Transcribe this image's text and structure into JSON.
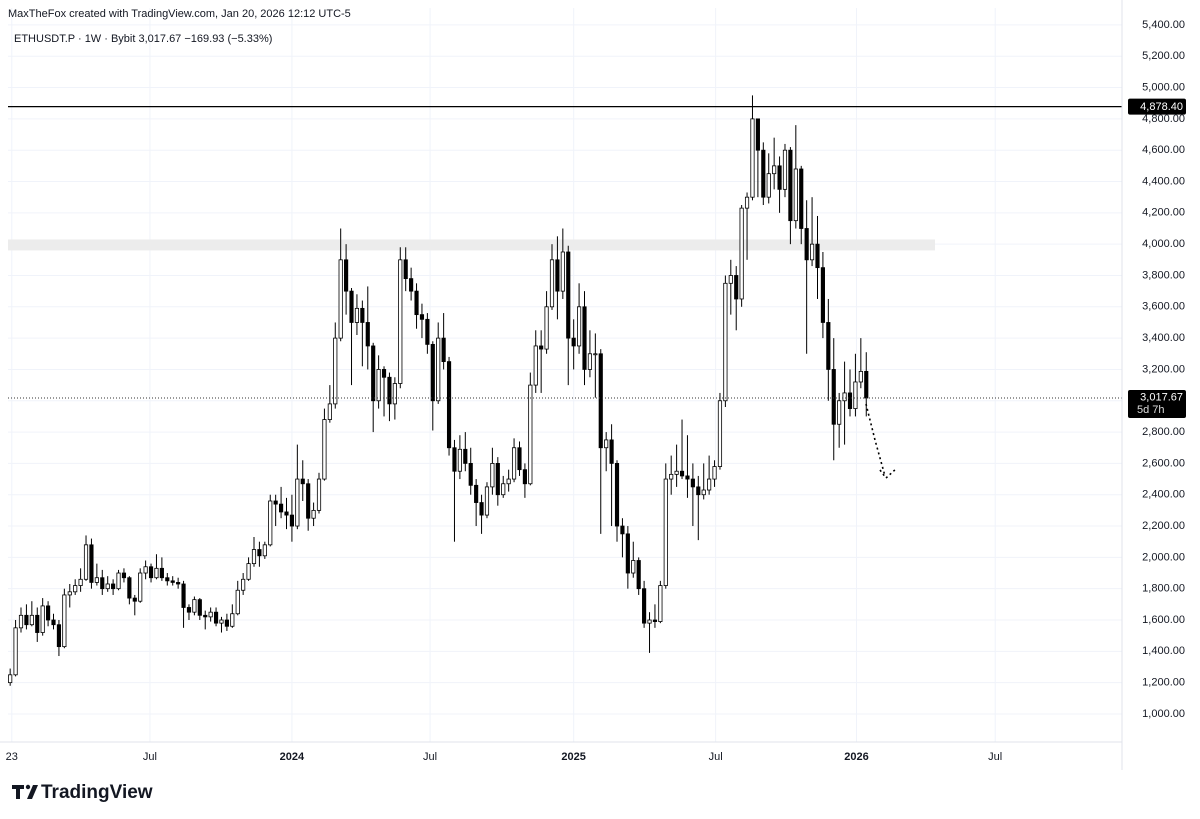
{
  "chart_data": {
    "type": "candlestick",
    "credit": "MaxTheFox created with TradingView.com, Jan 20, 2026 12:12 UTC-5",
    "symbol_line": "ETHUSDT.P · 1W · Bybit  3,017.67  −169.93 (−5.33%)",
    "logo": "TradingView",
    "up_color": "#ffffff",
    "down_color": "#000000",
    "grid": true,
    "ylim": [
      821,
      5508
    ],
    "yticks": [
      {
        "value": 1000,
        "label": "1,000.00"
      },
      {
        "value": 1200,
        "label": "1,200.00"
      },
      {
        "value": 1400,
        "label": "1,400.00"
      },
      {
        "value": 1600,
        "label": "1,600.00"
      },
      {
        "value": 1800,
        "label": "1,800.00"
      },
      {
        "value": 2000,
        "label": "2,000.00"
      },
      {
        "value": 2200,
        "label": "2,200.00"
      },
      {
        "value": 2400,
        "label": "2,400.00"
      },
      {
        "value": 2600,
        "label": "2,600.00"
      },
      {
        "value": 2800,
        "label": "2,800.00"
      },
      {
        "value": 3000,
        "label": "3,000.00"
      },
      {
        "value": 3200,
        "label": "3,200.00"
      },
      {
        "value": 3400,
        "label": "3,400.00"
      },
      {
        "value": 3600,
        "label": "3,600.00"
      },
      {
        "value": 3800,
        "label": "3,800.00"
      },
      {
        "value": 4000,
        "label": "4,000.00"
      },
      {
        "value": 4200,
        "label": "4,200.00"
      },
      {
        "value": 4400,
        "label": "4,400.00"
      },
      {
        "value": 4600,
        "label": "4,600.00"
      },
      {
        "value": 4800,
        "label": "4,800.00"
      },
      {
        "value": 5000,
        "label": "5,000.00"
      },
      {
        "value": 5200,
        "label": "5,200.00"
      },
      {
        "value": 5400,
        "label": "5,400.00"
      }
    ],
    "xlim": [
      -0.4,
      205.2
    ],
    "xticks": [
      {
        "value": 0.3,
        "label": "23"
      },
      {
        "value": 25.8,
        "label": "Jul"
      },
      {
        "value": 52,
        "label": "2024"
      },
      {
        "value": 77.5,
        "label": "Jul"
      },
      {
        "value": 104,
        "label": "2025"
      },
      {
        "value": 130.2,
        "label": "Jul"
      },
      {
        "value": 156.2,
        "label": "2026"
      },
      {
        "value": 181.8,
        "label": "Jul"
      }
    ],
    "horizontal_line": {
      "value": 4878.4,
      "label": "4,878.40"
    },
    "zone": [
      3960,
      4030
    ],
    "last_price": {
      "value": 3017.67,
      "label": "3,017.67",
      "countdown": "5d 7h"
    },
    "candles": [
      [
        1200,
        1290,
        1180,
        1250
      ],
      [
        1250,
        1600,
        1240,
        1550
      ],
      [
        1550,
        1680,
        1520,
        1630
      ],
      [
        1630,
        1700,
        1540,
        1570
      ],
      [
        1570,
        1720,
        1560,
        1630
      ],
      [
        1630,
        1680,
        1460,
        1520
      ],
      [
        1520,
        1740,
        1500,
        1690
      ],
      [
        1690,
        1720,
        1560,
        1600
      ],
      [
        1600,
        1640,
        1540,
        1570
      ],
      [
        1570,
        1600,
        1370,
        1430
      ],
      [
        1430,
        1800,
        1420,
        1760
      ],
      [
        1760,
        1830,
        1680,
        1780
      ],
      [
        1780,
        1860,
        1760,
        1820
      ],
      [
        1820,
        1930,
        1780,
        1860
      ],
      [
        1860,
        2140,
        1850,
        2080
      ],
      [
        2080,
        2120,
        1800,
        1840
      ],
      [
        1840,
        1960,
        1820,
        1870
      ],
      [
        1870,
        1920,
        1760,
        1800
      ],
      [
        1800,
        1880,
        1780,
        1830
      ],
      [
        1830,
        1860,
        1760,
        1800
      ],
      [
        1800,
        1920,
        1790,
        1900
      ],
      [
        1900,
        1930,
        1840,
        1870
      ],
      [
        1870,
        1880,
        1700,
        1740
      ],
      [
        1740,
        1760,
        1630,
        1720
      ],
      [
        1720,
        1930,
        1710,
        1900
      ],
      [
        1900,
        1980,
        1860,
        1940
      ],
      [
        1940,
        1960,
        1840,
        1870
      ],
      [
        1870,
        2020,
        1860,
        1930
      ],
      [
        1930,
        2000,
        1850,
        1870
      ],
      [
        1870,
        1900,
        1820,
        1850
      ],
      [
        1850,
        1880,
        1820,
        1840
      ],
      [
        1840,
        1870,
        1800,
        1830
      ],
      [
        1830,
        1850,
        1550,
        1680
      ],
      [
        1680,
        1700,
        1600,
        1650
      ],
      [
        1650,
        1750,
        1630,
        1730
      ],
      [
        1730,
        1740,
        1600,
        1630
      ],
      [
        1630,
        1660,
        1540,
        1620
      ],
      [
        1620,
        1680,
        1590,
        1650
      ],
      [
        1650,
        1680,
        1560,
        1580
      ],
      [
        1580,
        1620,
        1520,
        1600
      ],
      [
        1600,
        1640,
        1530,
        1560
      ],
      [
        1560,
        1700,
        1550,
        1640
      ],
      [
        1640,
        1850,
        1630,
        1790
      ],
      [
        1790,
        1900,
        1760,
        1860
      ],
      [
        1860,
        2000,
        1850,
        1960
      ],
      [
        1960,
        2130,
        1940,
        2050
      ],
      [
        2050,
        2100,
        1940,
        2010
      ],
      [
        2010,
        2100,
        1990,
        2080
      ],
      [
        2080,
        2400,
        2070,
        2360
      ],
      [
        2360,
        2400,
        2200,
        2340
      ],
      [
        2340,
        2450,
        2250,
        2290
      ],
      [
        2290,
        2380,
        2180,
        2270
      ],
      [
        2270,
        2400,
        2100,
        2200
      ],
      [
        2200,
        2720,
        2180,
        2500
      ],
      [
        2500,
        2620,
        2360,
        2470
      ],
      [
        2470,
        2500,
        2170,
        2250
      ],
      [
        2250,
        2350,
        2200,
        2300
      ],
      [
        2300,
        2540,
        2280,
        2500
      ],
      [
        2500,
        2950,
        2490,
        2880
      ],
      [
        2880,
        3100,
        2860,
        2980
      ],
      [
        2980,
        3500,
        2950,
        3400
      ],
      [
        3400,
        4100,
        3380,
        3900
      ],
      [
        3900,
        4000,
        3550,
        3700
      ],
      [
        3700,
        3720,
        3100,
        3500
      ],
      [
        3500,
        3680,
        3420,
        3590
      ],
      [
        3590,
        3640,
        3220,
        3500
      ],
      [
        3500,
        3730,
        3200,
        3350
      ],
      [
        3350,
        3370,
        2800,
        3000
      ],
      [
        3000,
        3290,
        2950,
        3200
      ],
      [
        3200,
        3220,
        2900,
        3150
      ],
      [
        3150,
        3180,
        2870,
        2980
      ],
      [
        2980,
        3150,
        2880,
        3110
      ],
      [
        3110,
        3980,
        3080,
        3900
      ],
      [
        3900,
        3980,
        3700,
        3780
      ],
      [
        3780,
        3850,
        3640,
        3700
      ],
      [
        3700,
        3750,
        3460,
        3550
      ],
      [
        3550,
        3620,
        3400,
        3520
      ],
      [
        3520,
        3560,
        3300,
        3360
      ],
      [
        3360,
        3380,
        2810,
        3000
      ],
      [
        3000,
        3500,
        2980,
        3400
      ],
      [
        3400,
        3560,
        3200,
        3250
      ],
      [
        3250,
        3280,
        2650,
        2700
      ],
      [
        2700,
        2750,
        2100,
        2550
      ],
      [
        2550,
        2780,
        2500,
        2690
      ],
      [
        2690,
        2800,
        2550,
        2600
      ],
      [
        2600,
        2700,
        2400,
        2460
      ],
      [
        2460,
        2500,
        2200,
        2350
      ],
      [
        2350,
        2400,
        2150,
        2270
      ],
      [
        2270,
        2480,
        2250,
        2450
      ],
      [
        2450,
        2700,
        2400,
        2600
      ],
      [
        2600,
        2640,
        2330,
        2400
      ],
      [
        2400,
        2520,
        2380,
        2470
      ],
      [
        2470,
        2560,
        2420,
        2500
      ],
      [
        2500,
        2760,
        2480,
        2700
      ],
      [
        2700,
        2740,
        2520,
        2560
      ],
      [
        2560,
        2600,
        2380,
        2470
      ],
      [
        2470,
        3180,
        2460,
        3100
      ],
      [
        3100,
        3450,
        3050,
        3350
      ],
      [
        3350,
        3450,
        3050,
        3330
      ],
      [
        3330,
        3700,
        3300,
        3600
      ],
      [
        3600,
        4000,
        3580,
        3900
      ],
      [
        3900,
        4050,
        3520,
        3700
      ],
      [
        3700,
        4100,
        3650,
        3950
      ],
      [
        3950,
        3990,
        3100,
        3400
      ],
      [
        3400,
        3520,
        3200,
        3350
      ],
      [
        3350,
        3750,
        3300,
        3600
      ],
      [
        3600,
        3700,
        3100,
        3200
      ],
      [
        3200,
        3450,
        3150,
        3300
      ],
      [
        3300,
        3430,
        3020,
        3300
      ],
      [
        3300,
        3330,
        2150,
        2700
      ],
      [
        2700,
        2800,
        2550,
        2750
      ],
      [
        2750,
        2850,
        2200,
        2600
      ],
      [
        2600,
        2620,
        2100,
        2200
      ],
      [
        2200,
        2250,
        2000,
        2150
      ],
      [
        2150,
        2200,
        1800,
        1900
      ],
      [
        1900,
        2100,
        1870,
        1980
      ],
      [
        1980,
        2000,
        1760,
        1800
      ],
      [
        1800,
        1850,
        1550,
        1580
      ],
      [
        1580,
        1650,
        1390,
        1600
      ],
      [
        1600,
        1700,
        1550,
        1590
      ],
      [
        1590,
        1850,
        1580,
        1820
      ],
      [
        1820,
        2600,
        1800,
        2500
      ],
      [
        2500,
        2650,
        2400,
        2530
      ],
      [
        2530,
        2720,
        2450,
        2550
      ],
      [
        2550,
        2880,
        2500,
        2520
      ],
      [
        2520,
        2780,
        2380,
        2500
      ],
      [
        2500,
        2600,
        2200,
        2450
      ],
      [
        2450,
        2520,
        2110,
        2400
      ],
      [
        2400,
        2600,
        2370,
        2430
      ],
      [
        2430,
        2650,
        2400,
        2500
      ],
      [
        2500,
        2620,
        2450,
        2580
      ],
      [
        2580,
        3050,
        2560,
        3000
      ],
      [
        3000,
        3800,
        2960,
        3750
      ],
      [
        3750,
        3900,
        3550,
        3800
      ],
      [
        3800,
        3860,
        3450,
        3650
      ],
      [
        3650,
        4250,
        3600,
        4230
      ],
      [
        4230,
        4330,
        3900,
        4300
      ],
      [
        4300,
        4950,
        4280,
        4800
      ],
      [
        4800,
        4800,
        4300,
        4600
      ],
      [
        4600,
        4650,
        4250,
        4300
      ],
      [
        4300,
        4580,
        4260,
        4450
      ],
      [
        4450,
        4680,
        4350,
        4500
      ],
      [
        4500,
        4560,
        4200,
        4350
      ],
      [
        4350,
        4640,
        4300,
        4600
      ],
      [
        4600,
        4620,
        4000,
        4150
      ],
      [
        4150,
        4760,
        4100,
        4480
      ],
      [
        4480,
        4500,
        4000,
        4100
      ],
      [
        4100,
        4280,
        3300,
        3900
      ],
      [
        3900,
        4300,
        3860,
        4000
      ],
      [
        4000,
        4180,
        3650,
        3850
      ],
      [
        3850,
        3950,
        3400,
        3500
      ],
      [
        3500,
        3650,
        3000,
        3200
      ],
      [
        3200,
        3400,
        2620,
        2850
      ],
      [
        2850,
        3050,
        2700,
        3000
      ],
      [
        3000,
        3250,
        2720,
        3050
      ],
      [
        3050,
        3200,
        2900,
        2950
      ],
      [
        2950,
        3300,
        2900,
        3120
      ],
      [
        3120,
        3400,
        3080,
        3187.6
      ],
      [
        3187.6,
        3310,
        2900,
        3017.67
      ]
    ]
  }
}
